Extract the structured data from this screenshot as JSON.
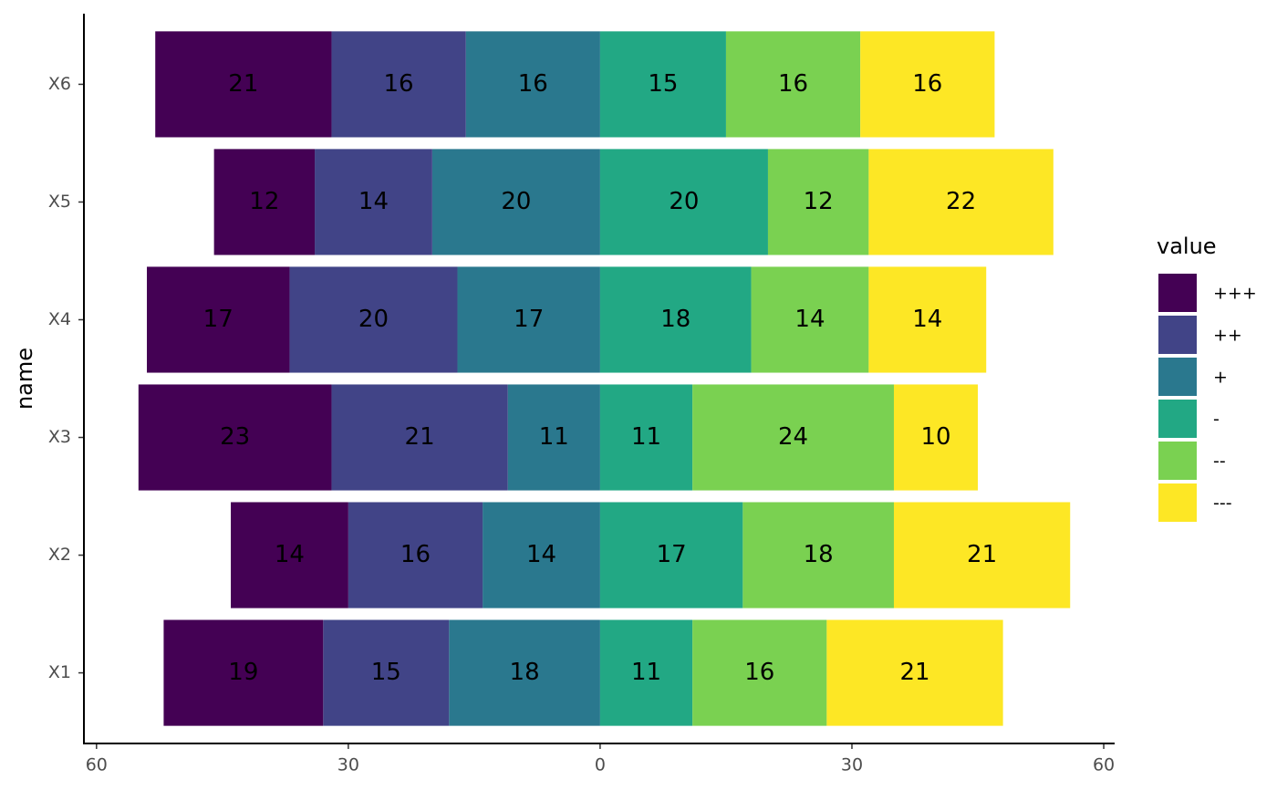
{
  "chart_data": {
    "type": "diverging-stacked-bar",
    "orientation": "horizontal",
    "x_label": null,
    "y_label": "name",
    "legend_title": "value",
    "legend": "right",
    "categories": [
      "X1",
      "X2",
      "X3",
      "X4",
      "X5",
      "X6"
    ],
    "series": [
      {
        "name": "+++",
        "color": "#440154",
        "values": [
          -19,
          -14,
          -23,
          -17,
          -12,
          -21
        ],
        "value_labels": [
          "19",
          "14",
          "23",
          "17",
          "12",
          "21"
        ]
      },
      {
        "name": "++",
        "color": "#414487",
        "values": [
          -15,
          -16,
          -21,
          -20,
          -14,
          -16
        ],
        "value_labels": [
          "15",
          "16",
          "21",
          "20",
          "14",
          "16"
        ]
      },
      {
        "name": "+",
        "color": "#2A788E",
        "values": [
          -18,
          -14,
          -11,
          -17,
          -20,
          -16
        ],
        "value_labels": [
          "18",
          "14",
          "11",
          "17",
          "20",
          "16"
        ]
      },
      {
        "name": "-",
        "color": "#22A884",
        "values": [
          11,
          17,
          11,
          18,
          20,
          15
        ]
      },
      {
        "name": "--",
        "color": "#7AD151",
        "values": [
          16,
          18,
          24,
          14,
          12,
          16
        ]
      },
      {
        "name": "---",
        "color": "#FDE725",
        "values": [
          21,
          21,
          10,
          14,
          22,
          16
        ]
      }
    ],
    "xlim": [
      -61.5,
      61.3
    ],
    "xticks": [
      {
        "value": -60,
        "label": "60"
      },
      {
        "value": -30,
        "label": "30"
      },
      0,
      30,
      60
    ]
  }
}
